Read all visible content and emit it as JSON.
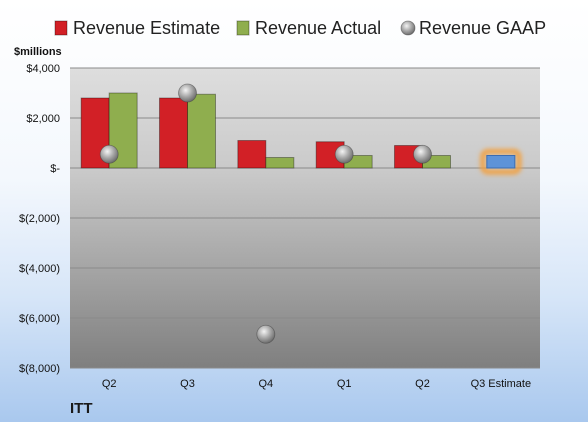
{
  "chart_data": {
    "type": "bar",
    "unit_label": "$millions",
    "brand": "ITT",
    "categories": [
      "Q2",
      "Q3",
      "Q4",
      "Q1",
      "Q2",
      "Q3 Estimate"
    ],
    "series": [
      {
        "name": "Revenue Estimate",
        "kind": "bar",
        "color": "#d22026",
        "values": [
          2800,
          2800,
          1100,
          1050,
          900,
          null
        ]
      },
      {
        "name": "Revenue Actual",
        "kind": "bar",
        "color": "#8fae4e",
        "values": [
          3000,
          2950,
          420,
          500,
          500,
          null
        ]
      },
      {
        "name": "Revenue GAAP",
        "kind": "marker",
        "color": "#9a9a9a",
        "values": [
          550,
          3000,
          -6650,
          550,
          550,
          null
        ]
      },
      {
        "name": "Q3 Estimate",
        "kind": "bar",
        "color": "#5d93d8",
        "highlight": "#f2a040",
        "values": [
          null,
          null,
          null,
          null,
          null,
          500
        ],
        "show_in_legend": false
      }
    ],
    "ylim": [
      -8000,
      4000
    ],
    "yticks": [
      {
        "value": 4000,
        "label": "$4,000"
      },
      {
        "value": 2000,
        "label": "$2,000"
      },
      {
        "value": 0,
        "label": "$-"
      },
      {
        "value": -2000,
        "label": "$(2,000)"
      },
      {
        "value": -4000,
        "label": "$(4,000)"
      },
      {
        "value": -6000,
        "label": "$(6,000)"
      },
      {
        "value": -8000,
        "label": "$(8,000)"
      }
    ],
    "grid": true,
    "legend_position": "top"
  }
}
